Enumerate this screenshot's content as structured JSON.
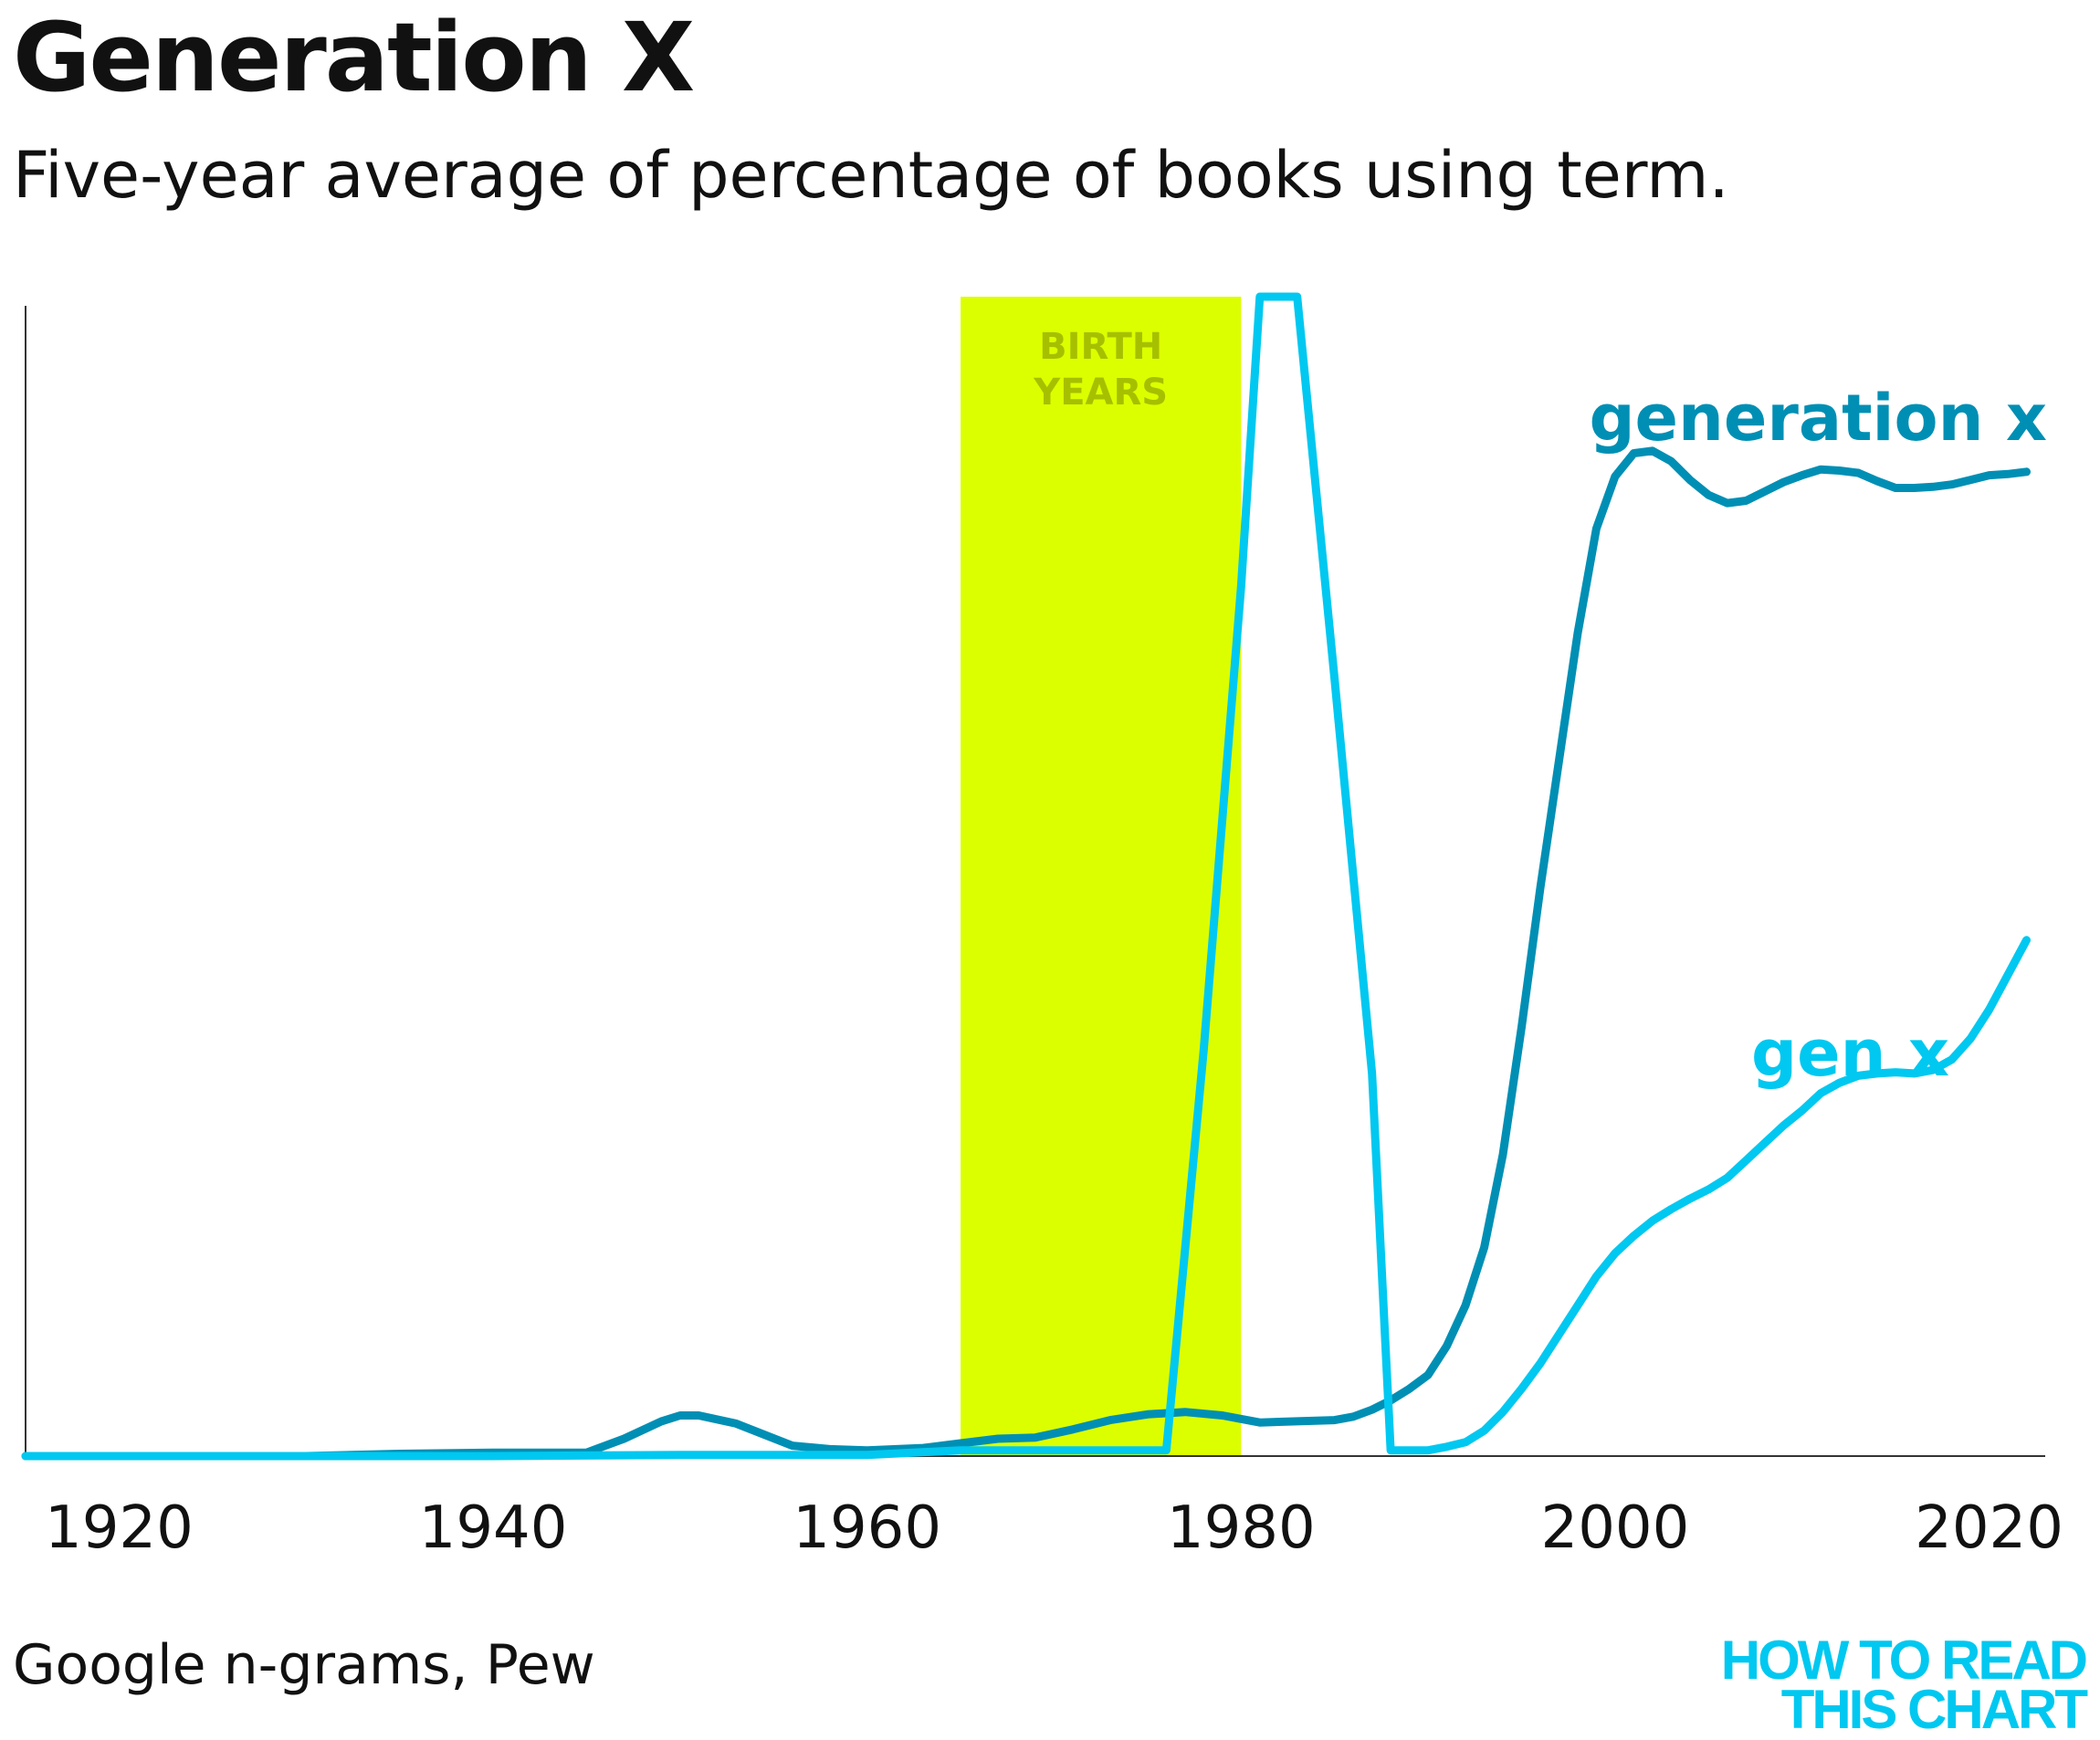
{
  "chart_data": {
    "type": "line",
    "title": "Generation X",
    "subtitle": "Five-year average of percentage of books using term.",
    "source": "Google n-grams, Pew",
    "xlabel": "",
    "ylabel": "",
    "xlim": [
      1915,
      2023
    ],
    "ylim": [
      0,
      100
    ],
    "xticks": [
      1920,
      1940,
      1960,
      1980,
      2000,
      2020
    ],
    "grid": false,
    "legend": "direct-labels",
    "highlight": {
      "label_line1": "BIRTH",
      "label_line2": "YEARS",
      "x_start": 1965,
      "x_end": 1980,
      "color": "#dcff00"
    },
    "series": [
      {
        "name": "generation x",
        "color": "#008fb4",
        "x": [
          1915,
          1920,
          1925,
          1930,
          1935,
          1940,
          1945,
          1947,
          1949,
          1950,
          1951,
          1953,
          1956,
          1958,
          1960,
          1963,
          1965,
          1967,
          1969,
          1971,
          1973,
          1975,
          1977,
          1979,
          1981,
          1983,
          1985,
          1986,
          1987,
          1988,
          1989,
          1990,
          1991,
          1992,
          1993,
          1994,
          1995,
          1996,
          1997,
          1998,
          1999,
          2000,
          2001,
          2002,
          2003,
          2004,
          2005,
          2006,
          2007,
          2008,
          2009,
          2010,
          2011,
          2012,
          2013,
          2014,
          2015,
          2016,
          2017,
          2018,
          2019,
          2020,
          2021,
          2022
        ],
        "values": [
          0.0,
          0.0,
          0.0,
          0.0,
          0.2,
          0.3,
          0.3,
          1.5,
          3.0,
          3.5,
          3.5,
          2.8,
          0.9,
          0.6,
          0.5,
          0.7,
          1.1,
          1.5,
          1.6,
          2.3,
          3.1,
          3.6,
          3.8,
          3.5,
          2.9,
          3.0,
          3.1,
          3.4,
          4.0,
          4.8,
          5.8,
          7.0,
          9.5,
          13.0,
          18.0,
          26.0,
          37.0,
          49.0,
          60.0,
          71.0,
          80.0,
          84.5,
          86.5,
          86.7,
          85.8,
          84.2,
          82.9,
          82.2,
          82.4,
          83.2,
          84.0,
          84.6,
          85.1,
          85.0,
          84.8,
          84.1,
          83.5,
          83.5,
          83.6,
          83.8,
          84.2,
          84.6,
          84.7,
          84.9
        ]
      },
      {
        "name": "gen x",
        "color": "#00c8f0",
        "x": [
          1915,
          1920,
          1930,
          1940,
          1950,
          1960,
          1965,
          1970,
          1976,
          1978,
          1980,
          1981,
          1982,
          1983,
          1985,
          1987,
          1988,
          1989,
          1990,
          1991,
          1992,
          1993,
          1994,
          1995,
          1996,
          1997,
          1998,
          1999,
          2000,
          2001,
          2002,
          2003,
          2004,
          2005,
          2006,
          2007,
          2008,
          2009,
          2010,
          2011,
          2012,
          2013,
          2014,
          2015,
          2016,
          2017,
          2018,
          2019,
          2020,
          2021,
          2022
        ],
        "values": [
          0.0,
          0.0,
          0.0,
          0.0,
          0.1,
          0.1,
          0.5,
          0.5,
          0.5,
          35.0,
          75.0,
          100.0,
          100.0,
          100.0,
          67.0,
          33.0,
          0.5,
          0.5,
          0.5,
          0.8,
          1.2,
          2.2,
          3.8,
          5.8,
          8.0,
          10.5,
          13.0,
          15.5,
          17.5,
          19.0,
          20.3,
          21.3,
          22.2,
          23.0,
          24.0,
          25.5,
          27.0,
          28.5,
          29.8,
          31.3,
          32.2,
          32.8,
          33.0,
          33.1,
          33.0,
          33.3,
          34.2,
          36.0,
          38.5,
          41.5,
          44.5
        ]
      }
    ],
    "annotations": [
      {
        "text": "generation x",
        "series": "generation x"
      },
      {
        "text": "gen x",
        "series": "gen x"
      }
    ]
  },
  "branding": {
    "line1": "HOW TO READ",
    "line2": "THIS CHART",
    "color": "#00c8f0"
  }
}
